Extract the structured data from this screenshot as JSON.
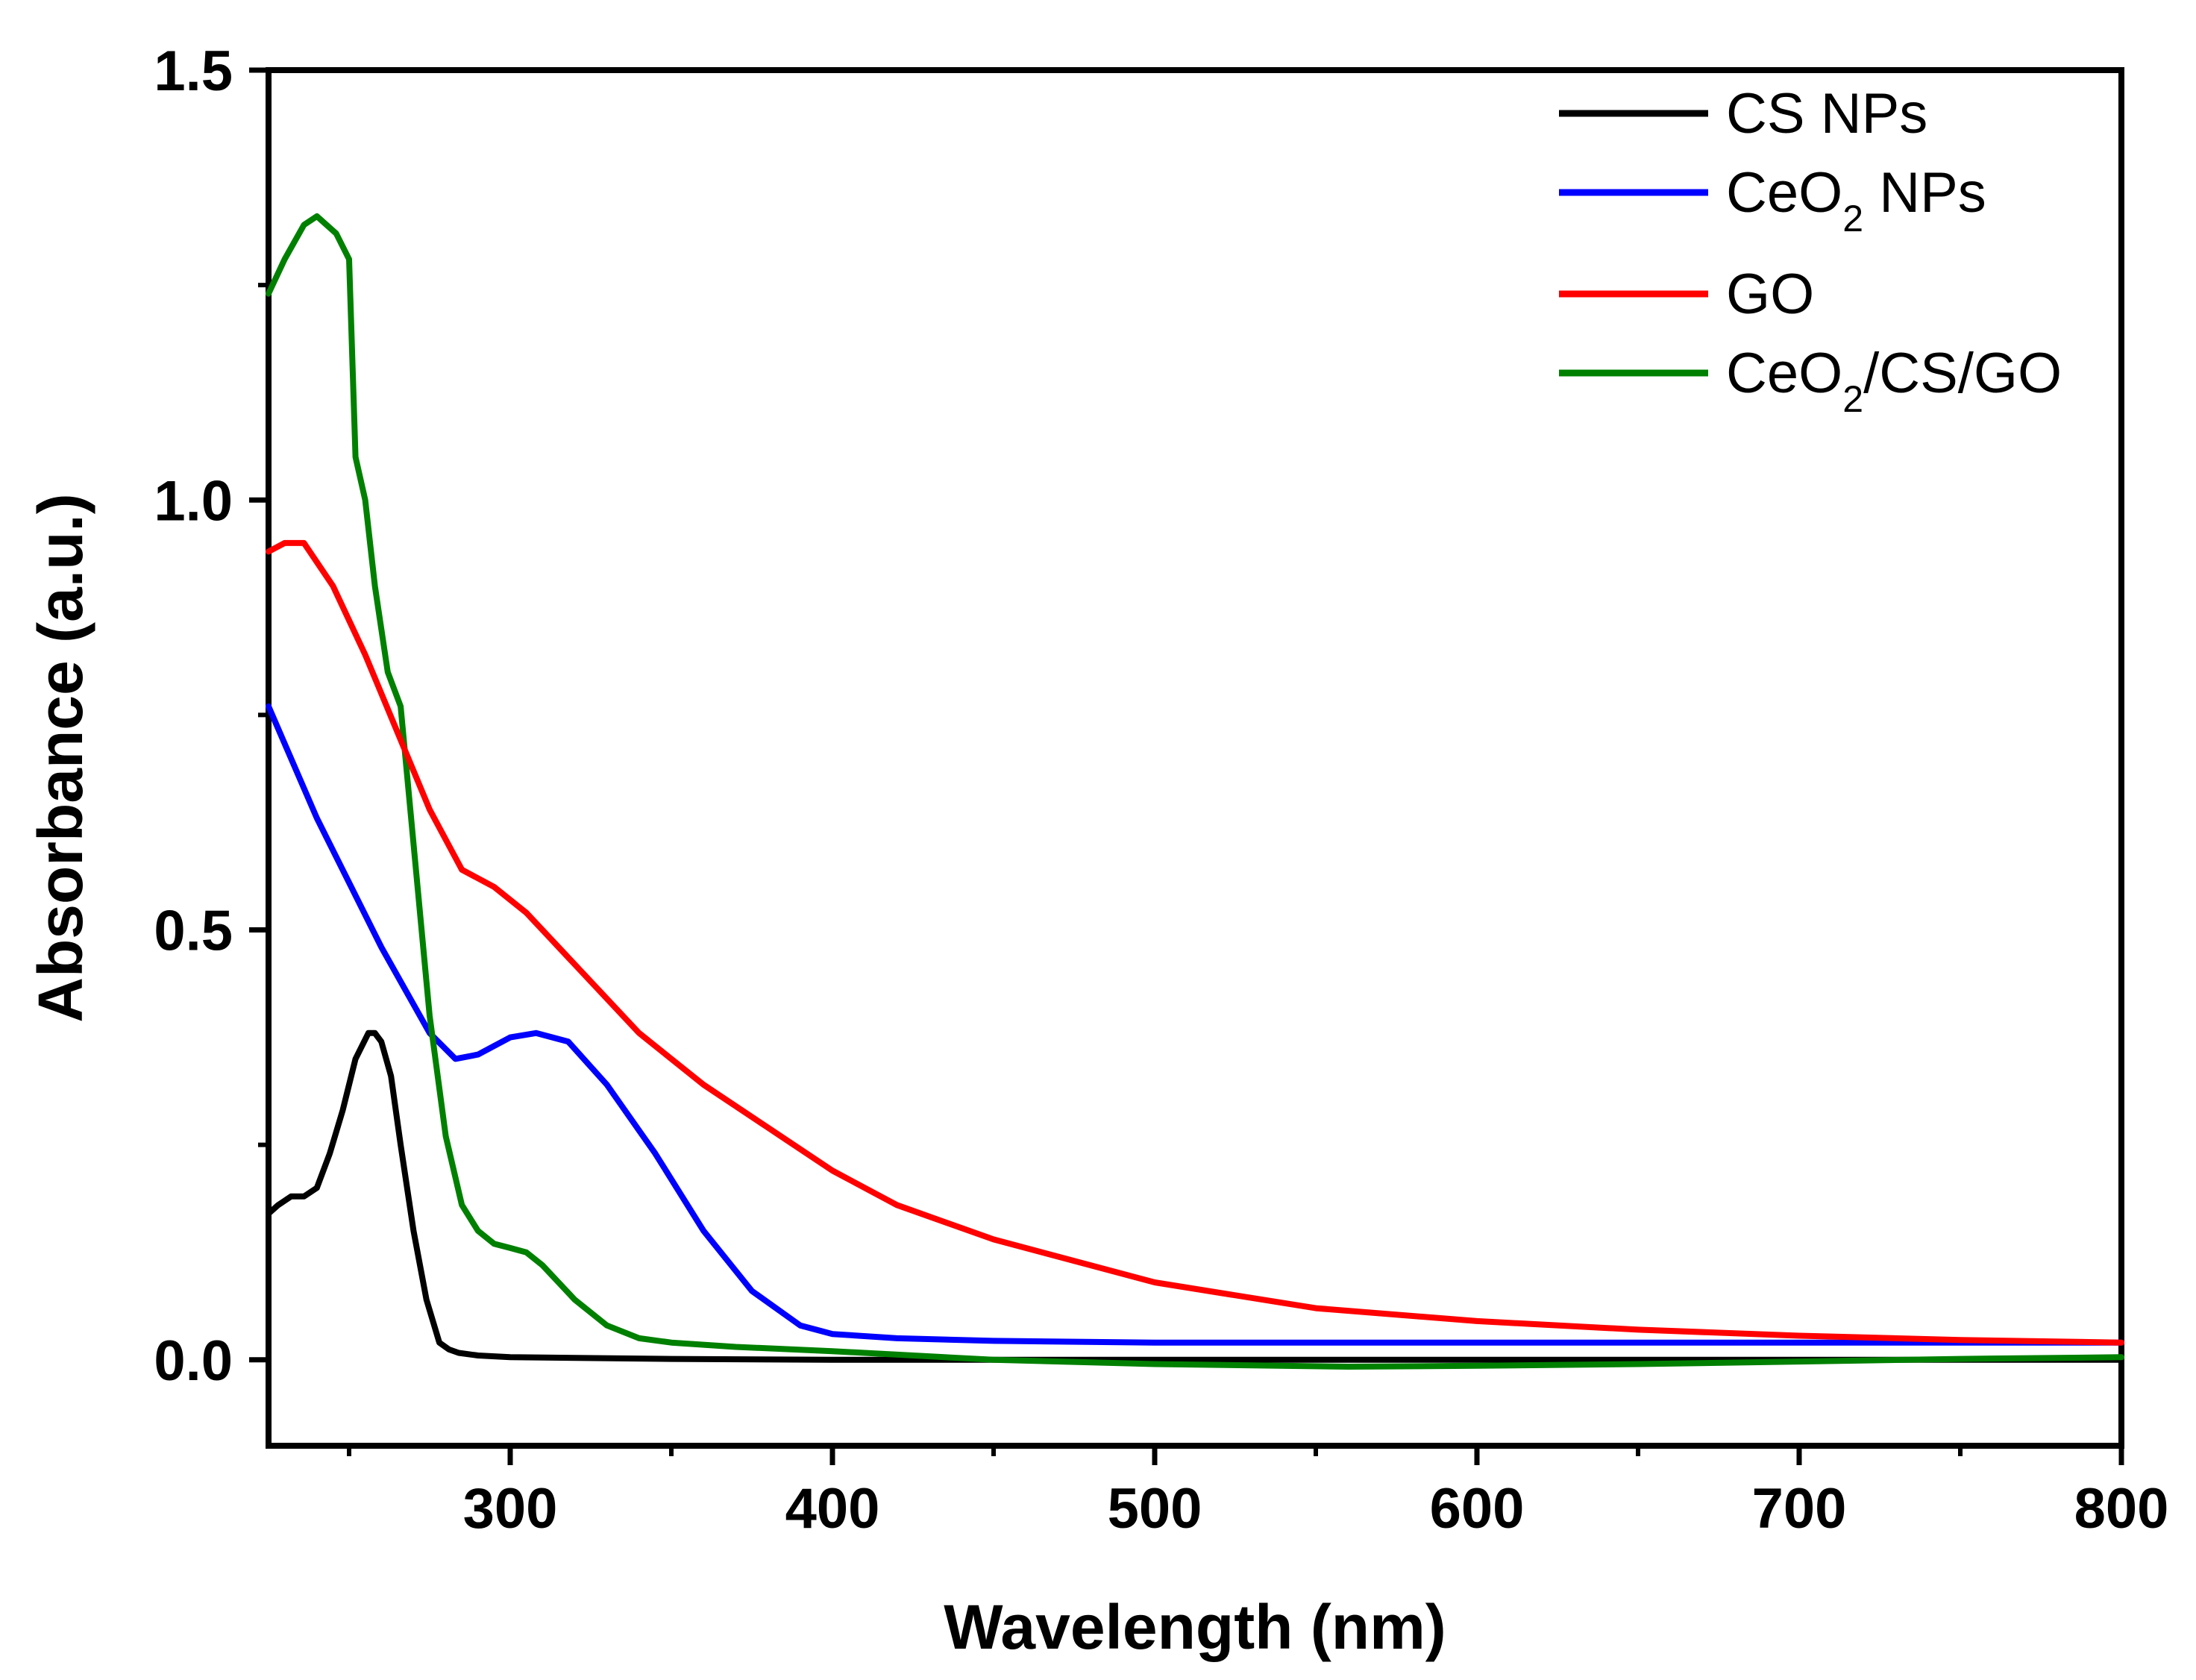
{
  "chart_data": {
    "type": "line",
    "xlabel": "Wavelength (nm)",
    "ylabel": "Absorbance (a.u.)",
    "xlim": [
      225,
      800
    ],
    "ylim": [
      -0.1,
      1.5
    ],
    "xticks": [
      300,
      400,
      500,
      600,
      700,
      800
    ],
    "xtick_labels": [
      "300",
      "400",
      "500",
      "600",
      "700",
      "800"
    ],
    "yticks": [
      0.0,
      0.5,
      1.0,
      1.5
    ],
    "ytick_labels": [
      "0.0",
      "0.5",
      "1.0",
      "1.5"
    ],
    "grid": false,
    "legend_position": "top-right",
    "series": [
      {
        "name": "CS NPs",
        "legend_main": "CS NPs",
        "legend_sub": "",
        "legend_after": "",
        "color": "#000000",
        "x": [
          225,
          228,
          232,
          236,
          240,
          244,
          248,
          252,
          256,
          258,
          260,
          263,
          266,
          270,
          274,
          278,
          281,
          284,
          290,
          300,
          350,
          400,
          500,
          600,
          700,
          800
        ],
        "y": [
          0.17,
          0.18,
          0.19,
          0.19,
          0.2,
          0.24,
          0.29,
          0.35,
          0.38,
          0.38,
          0.37,
          0.33,
          0.25,
          0.15,
          0.07,
          0.02,
          0.012,
          0.008,
          0.005,
          0.003,
          0.001,
          0.0,
          0.0,
          0.0,
          0.0,
          0.0
        ]
      },
      {
        "name": "CeO2 NPs",
        "legend_main": "CeO",
        "legend_sub": "2",
        "legend_after": " NPs",
        "color": "#0000ff",
        "x": [
          225,
          240,
          260,
          275,
          283,
          290,
          300,
          308,
          318,
          330,
          345,
          360,
          375,
          390,
          400,
          420,
          450,
          500,
          600,
          700,
          800
        ],
        "y": [
          0.76,
          0.63,
          0.48,
          0.38,
          0.35,
          0.355,
          0.375,
          0.38,
          0.37,
          0.32,
          0.24,
          0.15,
          0.08,
          0.04,
          0.03,
          0.025,
          0.022,
          0.02,
          0.02,
          0.02,
          0.02
        ]
      },
      {
        "name": "GO",
        "legend_main": "GO",
        "legend_sub": "",
        "legend_after": "",
        "color": "#ff0000",
        "x": [
          225,
          230,
          236,
          245,
          255,
          265,
          275,
          285,
          295,
          305,
          315,
          325,
          340,
          360,
          380,
          400,
          420,
          450,
          500,
          550,
          600,
          650,
          700,
          750,
          800
        ],
        "y": [
          0.94,
          0.95,
          0.95,
          0.9,
          0.82,
          0.73,
          0.64,
          0.57,
          0.55,
          0.52,
          0.48,
          0.44,
          0.38,
          0.32,
          0.27,
          0.22,
          0.18,
          0.14,
          0.09,
          0.06,
          0.045,
          0.035,
          0.028,
          0.023,
          0.02
        ]
      },
      {
        "name": "CeO2/CS/GO",
        "legend_main": "CeO",
        "legend_sub": "2",
        "legend_after": "/CS/GO",
        "color": "#008000",
        "x": [
          225,
          230,
          236,
          240,
          246,
          250,
          252,
          255,
          258,
          262,
          266,
          270,
          275,
          280,
          285,
          290,
          295,
          300,
          305,
          310,
          320,
          330,
          340,
          350,
          370,
          400,
          450,
          500,
          560,
          600,
          650,
          700,
          750,
          800
        ],
        "y": [
          1.24,
          1.28,
          1.32,
          1.33,
          1.31,
          1.28,
          1.05,
          1.0,
          0.9,
          0.8,
          0.76,
          0.6,
          0.4,
          0.26,
          0.18,
          0.15,
          0.135,
          0.13,
          0.125,
          0.11,
          0.07,
          0.04,
          0.025,
          0.02,
          0.015,
          0.01,
          0.0,
          -0.005,
          -0.008,
          -0.007,
          -0.005,
          -0.002,
          0.001,
          0.003
        ]
      }
    ]
  }
}
